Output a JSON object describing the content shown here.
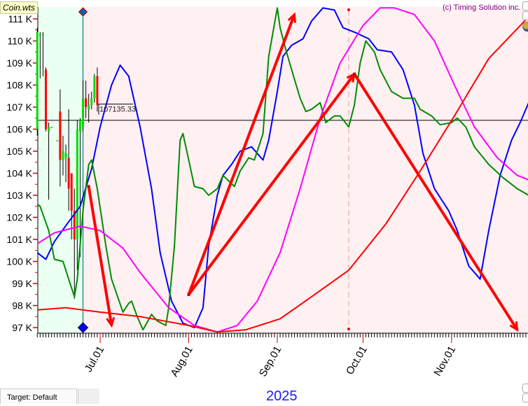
{
  "file_label": "Coin.wts",
  "copyright": "(c) Timing Solution inc.",
  "year_label": "2025",
  "target_tab": "Target: Default",
  "price_label": "107135.33",
  "chart_data": {
    "type": "line",
    "title": "",
    "xlabel": "2025",
    "ylabel": "",
    "y_unit": "K",
    "xlim": [
      "2025-06-09",
      "2025-11-28"
    ],
    "ylim": [
      96.8,
      111.6
    ],
    "y_ticks": [
      97,
      98,
      99,
      100,
      101,
      102,
      103,
      104,
      105,
      106,
      107,
      108,
      109,
      110,
      111
    ],
    "y_tick_labels": [
      "97 K",
      "98 K",
      "99 K",
      "100 K",
      "101 K",
      "102 K",
      "103 K",
      "104 K",
      "105 K",
      "106 K",
      "107 K",
      "108 K",
      "109 K",
      "110 K",
      "111 K"
    ],
    "x_ticks": [
      {
        "date": "2025-07-01",
        "label": "Jul.01"
      },
      {
        "date": "2025-08-01",
        "label": "Aug.01"
      },
      {
        "date": "2025-09-01",
        "label": "Sep.01"
      },
      {
        "date": "2025-10-01",
        "label": "Oct.01"
      },
      {
        "date": "2025-11-01",
        "label": "Nov.01"
      }
    ],
    "colors": {
      "history_bg": "#ebfff2",
      "forecast_bg": "#fff0f2",
      "up": "#00dd00",
      "down": "#ff0000",
      "cursor": "#008080"
    },
    "cursor_date": "2025-06-25",
    "marker_date": "2025-09-26",
    "horizontal_level": 106.4,
    "price_level": 107.135,
    "candles": [
      {
        "date": "2025-06-09",
        "o": 106.0,
        "h": 110.6,
        "l": 105.7,
        "c": 110.4
      },
      {
        "date": "2025-06-10",
        "o": 110.3,
        "h": 110.4,
        "l": 108.3,
        "c": 110.3
      },
      {
        "date": "2025-06-11",
        "o": 110.3,
        "h": 110.4,
        "l": 108.4,
        "c": 110.3
      },
      {
        "date": "2025-06-12",
        "o": 108.7,
        "h": 108.8,
        "l": 105.9,
        "c": 106.0
      },
      {
        "date": "2025-06-13",
        "o": 105.9,
        "h": 106.3,
        "l": 102.8,
        "c": 106.1
      },
      {
        "date": "2025-06-14",
        "o": 106.1,
        "h": 106.1,
        "l": 106.1,
        "c": 106.1
      },
      {
        "date": "2025-06-16",
        "o": 105.5,
        "h": 105.5,
        "l": 105.5,
        "c": 105.5
      },
      {
        "date": "2025-06-17",
        "o": 106.8,
        "h": 107.8,
        "l": 103.4,
        "c": 104.6
      },
      {
        "date": "2025-06-18",
        "o": 104.6,
        "h": 105.7,
        "l": 103.9,
        "c": 105.0
      },
      {
        "date": "2025-06-19",
        "o": 104.7,
        "h": 105.3,
        "l": 103.6,
        "c": 104.9
      },
      {
        "date": "2025-06-20",
        "o": 104.7,
        "h": 106.9,
        "l": 102.3,
        "c": 103.3
      },
      {
        "date": "2025-06-21",
        "o": 104.0,
        "h": 104.0,
        "l": 101.0,
        "c": 102.3
      },
      {
        "date": "2025-06-22",
        "o": 102.3,
        "h": 103.3,
        "l": 98.3,
        "c": 101.0
      },
      {
        "date": "2025-06-23",
        "o": 101.0,
        "h": 106.4,
        "l": 99.6,
        "c": 106.0
      },
      {
        "date": "2025-06-24",
        "o": 105.9,
        "h": 106.5,
        "l": 100.2,
        "c": 106.4
      },
      {
        "date": "2025-06-25",
        "o": 106.1,
        "h": 108.2,
        "l": 105.9,
        "c": 107.4
      },
      {
        "date": "2025-06-26",
        "o": 107.4,
        "h": 108.2,
        "l": 106.5,
        "c": 107.0
      },
      {
        "date": "2025-06-27",
        "o": 106.9,
        "h": 107.6,
        "l": 106.3,
        "c": 107.1
      },
      {
        "date": "2025-06-28",
        "o": 107.1,
        "h": 107.7,
        "l": 106.9,
        "c": 107.4
      },
      {
        "date": "2025-06-29",
        "o": 107.4,
        "h": 108.5,
        "l": 107.2,
        "c": 108.4
      },
      {
        "date": "2025-06-30",
        "o": 108.4,
        "h": 108.8,
        "l": 106.8,
        "c": 107.1
      }
    ],
    "series": [
      {
        "color": "#0000ff",
        "points": [
          [
            "2025-06-09",
            100.4
          ],
          [
            "2025-06-12",
            100.1
          ],
          [
            "2025-06-15",
            100.9
          ],
          [
            "2025-06-20",
            101.8
          ],
          [
            "2025-06-24",
            102.5
          ],
          [
            "2025-06-28",
            104.2
          ],
          [
            "2025-07-01",
            106.1
          ],
          [
            "2025-07-05",
            108.0
          ],
          [
            "2025-07-08",
            108.9
          ],
          [
            "2025-07-11",
            108.4
          ],
          [
            "2025-07-15",
            106.1
          ],
          [
            "2025-07-19",
            103.3
          ],
          [
            "2025-07-22",
            100.4
          ],
          [
            "2025-07-26",
            98.2
          ],
          [
            "2025-07-30",
            97.2
          ],
          [
            "2025-08-03",
            97.0
          ],
          [
            "2025-08-06",
            97.9
          ],
          [
            "2025-08-08",
            100.7
          ],
          [
            "2025-08-11",
            103.0
          ],
          [
            "2025-08-13",
            103.9
          ],
          [
            "2025-08-16",
            104.4
          ],
          [
            "2025-08-19",
            105.0
          ],
          [
            "2025-08-23",
            105.2
          ],
          [
            "2025-08-27",
            104.6
          ],
          [
            "2025-08-29",
            105.5
          ],
          [
            "2025-09-01",
            107.7
          ],
          [
            "2025-09-03",
            109.3
          ],
          [
            "2025-09-06",
            109.8
          ],
          [
            "2025-09-10",
            110.1
          ],
          [
            "2025-09-13",
            110.9
          ],
          [
            "2025-09-17",
            111.5
          ],
          [
            "2025-09-21",
            111.4
          ],
          [
            "2025-09-24",
            110.6
          ],
          [
            "2025-09-28",
            110.4
          ],
          [
            "2025-10-03",
            110.1
          ],
          [
            "2025-10-06",
            109.6
          ],
          [
            "2025-10-11",
            109.5
          ],
          [
            "2025-10-15",
            108.7
          ],
          [
            "2025-10-19",
            107.1
          ],
          [
            "2025-10-22",
            104.9
          ],
          [
            "2025-10-26",
            103.3
          ],
          [
            "2025-10-31",
            102.3
          ],
          [
            "2025-11-03",
            101.4
          ],
          [
            "2025-11-07",
            99.8
          ],
          [
            "2025-11-11",
            99.2
          ],
          [
            "2025-11-14",
            101.4
          ],
          [
            "2025-11-18",
            103.9
          ],
          [
            "2025-11-22",
            105.5
          ],
          [
            "2025-11-25",
            106.3
          ],
          [
            "2025-11-28",
            107.2
          ]
        ]
      },
      {
        "color": "#008c00",
        "points": [
          [
            "2025-06-09",
            102.6
          ],
          [
            "2025-06-10",
            102.5
          ],
          [
            "2025-06-13",
            101.4
          ],
          [
            "2025-06-15",
            100.1
          ],
          [
            "2025-06-18",
            100.0
          ],
          [
            "2025-06-20",
            99.2
          ],
          [
            "2025-06-22",
            98.4
          ],
          [
            "2025-06-23",
            99.2
          ],
          [
            "2025-06-25",
            102.3
          ],
          [
            "2025-06-27",
            104.4
          ],
          [
            "2025-06-28",
            104.6
          ],
          [
            "2025-06-30",
            103.3
          ],
          [
            "2025-07-03",
            100.7
          ],
          [
            "2025-07-05",
            99.2
          ],
          [
            "2025-07-09",
            97.7
          ],
          [
            "2025-07-11",
            98.1
          ],
          [
            "2025-07-12",
            98.2
          ],
          [
            "2025-07-14",
            97.5
          ],
          [
            "2025-07-16",
            96.9
          ],
          [
            "2025-07-19",
            97.6
          ],
          [
            "2025-07-21",
            97.3
          ],
          [
            "2025-07-24",
            97.1
          ],
          [
            "2025-07-25",
            97.9
          ],
          [
            "2025-07-27",
            100.7
          ],
          [
            "2025-07-29",
            105.5
          ],
          [
            "2025-07-30",
            105.8
          ],
          [
            "2025-08-01",
            104.6
          ],
          [
            "2025-08-03",
            103.4
          ],
          [
            "2025-08-06",
            103.3
          ],
          [
            "2025-08-08",
            103.0
          ],
          [
            "2025-08-11",
            103.3
          ],
          [
            "2025-08-13",
            103.9
          ],
          [
            "2025-08-17",
            103.4
          ],
          [
            "2025-08-19",
            104.1
          ],
          [
            "2025-08-22",
            104.7
          ],
          [
            "2025-08-24",
            104.6
          ],
          [
            "2025-08-27",
            105.8
          ],
          [
            "2025-08-29",
            109.3
          ],
          [
            "2025-09-01",
            111.5
          ],
          [
            "2025-09-02",
            110.6
          ],
          [
            "2025-09-04",
            109.6
          ],
          [
            "2025-09-06",
            108.7
          ],
          [
            "2025-09-09",
            107.4
          ],
          [
            "2025-09-11",
            106.8
          ],
          [
            "2025-09-13",
            106.9
          ],
          [
            "2025-09-16",
            107.2
          ],
          [
            "2025-09-18",
            106.3
          ],
          [
            "2025-09-21",
            106.6
          ],
          [
            "2025-09-23",
            106.6
          ],
          [
            "2025-09-26",
            106.1
          ],
          [
            "2025-09-28",
            107.1
          ],
          [
            "2025-09-30",
            109.0
          ],
          [
            "2025-10-02",
            110.0
          ],
          [
            "2025-10-05",
            109.5
          ],
          [
            "2025-10-07",
            108.7
          ],
          [
            "2025-10-11",
            107.7
          ],
          [
            "2025-10-15",
            107.4
          ],
          [
            "2025-10-19",
            107.4
          ],
          [
            "2025-10-21",
            106.9
          ],
          [
            "2025-10-25",
            106.6
          ],
          [
            "2025-10-28",
            106.2
          ],
          [
            "2025-11-01",
            106.3
          ],
          [
            "2025-11-03",
            106.5
          ],
          [
            "2025-11-06",
            106.1
          ],
          [
            "2025-11-09",
            105.2
          ],
          [
            "2025-11-14",
            104.4
          ],
          [
            "2025-11-19",
            103.8
          ],
          [
            "2025-11-24",
            103.3
          ],
          [
            "2025-11-28",
            103.0
          ]
        ]
      },
      {
        "color": "#ff00ff",
        "points": [
          [
            "2025-06-09",
            100.8
          ],
          [
            "2025-06-15",
            101.3
          ],
          [
            "2025-06-24",
            101.6
          ],
          [
            "2025-07-01",
            101.4
          ],
          [
            "2025-07-09",
            100.6
          ],
          [
            "2025-07-15",
            99.5
          ],
          [
            "2025-07-25",
            97.9
          ],
          [
            "2025-08-03",
            97.1
          ],
          [
            "2025-08-11",
            96.8
          ],
          [
            "2025-08-18",
            97.1
          ],
          [
            "2025-08-25",
            98.2
          ],
          [
            "2025-09-02",
            100.4
          ],
          [
            "2025-09-09",
            103.3
          ],
          [
            "2025-09-16",
            106.5
          ],
          [
            "2025-09-23",
            109.0
          ],
          [
            "2025-10-01",
            110.7
          ],
          [
            "2025-10-07",
            111.5
          ],
          [
            "2025-10-12",
            111.5
          ],
          [
            "2025-10-19",
            111.2
          ],
          [
            "2025-10-26",
            110.0
          ],
          [
            "2025-11-02",
            108.0
          ],
          [
            "2025-11-09",
            106.1
          ],
          [
            "2025-11-17",
            104.7
          ],
          [
            "2025-11-24",
            103.9
          ],
          [
            "2025-11-28",
            103.7
          ]
        ]
      },
      {
        "color": "#ff0000",
        "points": [
          [
            "2025-06-09",
            97.8
          ],
          [
            "2025-06-19",
            97.9
          ],
          [
            "2025-07-01",
            97.7
          ],
          [
            "2025-07-15",
            97.5
          ],
          [
            "2025-08-01",
            97.1
          ],
          [
            "2025-08-11",
            96.8
          ],
          [
            "2025-08-21",
            96.9
          ],
          [
            "2025-09-02",
            97.4
          ],
          [
            "2025-09-13",
            98.4
          ],
          [
            "2025-09-26",
            99.6
          ],
          [
            "2025-10-09",
            101.7
          ],
          [
            "2025-10-21",
            104.1
          ],
          [
            "2025-11-02",
            106.6
          ],
          [
            "2025-11-14",
            109.2
          ],
          [
            "2025-11-28",
            111.1
          ]
        ]
      }
    ],
    "arrows": [
      {
        "from": [
          "2025-06-27",
          103.4
        ],
        "to": [
          "2025-07-05",
          97.1
        ]
      },
      {
        "from": [
          "2025-08-01",
          98.5
        ],
        "to": [
          "2025-09-07",
          111.2
        ]
      },
      {
        "from": [
          "2025-08-01",
          98.5
        ],
        "to": [
          "2025-09-28",
          108.5
        ]
      },
      {
        "from": [
          "2025-09-28",
          108.5
        ],
        "to": [
          "2025-11-24",
          96.9
        ]
      }
    ]
  }
}
